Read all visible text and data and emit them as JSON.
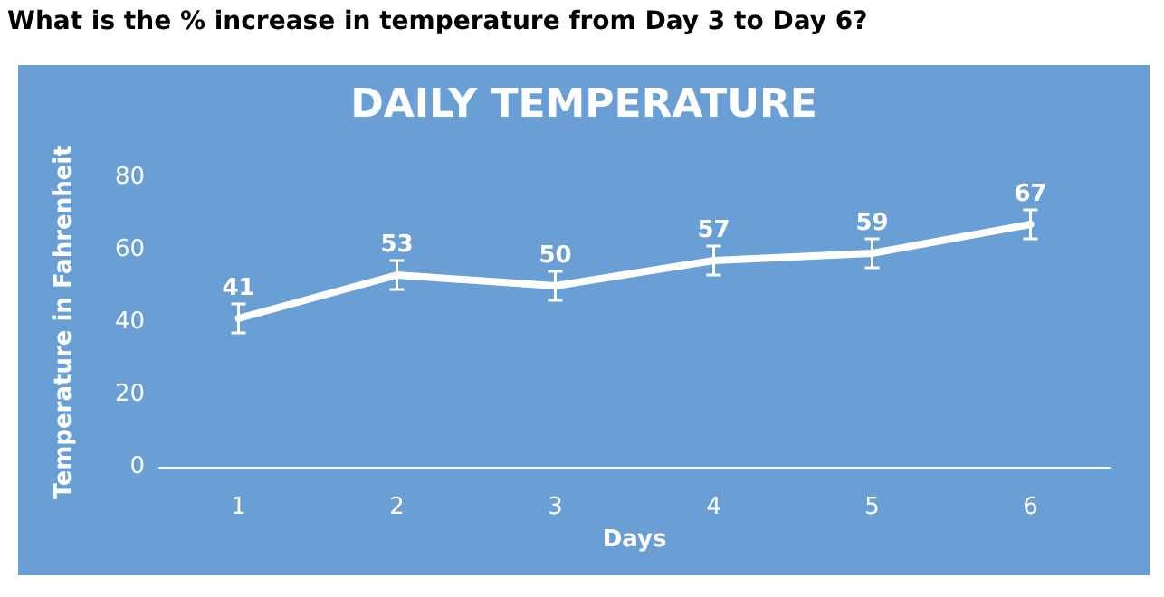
{
  "chart_data": {
    "type": "line",
    "title": "DAILY TEMPERATURE",
    "annotations": [
      "What is the % increase in temperature from Day 3 to Day 6?"
    ],
    "xlabel": "Days",
    "ylabel": "Temperature in Fahrenheit",
    "categories": [
      "1",
      "2",
      "3",
      "4",
      "5",
      "6"
    ],
    "series": [
      {
        "color": "#ffffff",
        "values": [
          41,
          53,
          50,
          57,
          59,
          67
        ],
        "errors": [
          4,
          4,
          4,
          4,
          4,
          4
        ]
      }
    ],
    "ylim": [
      0,
      80
    ],
    "yticks": [
      0,
      20,
      40,
      60,
      80
    ],
    "grid": false,
    "marker": "none",
    "line_style": "solid",
    "data_labels": true
  }
}
